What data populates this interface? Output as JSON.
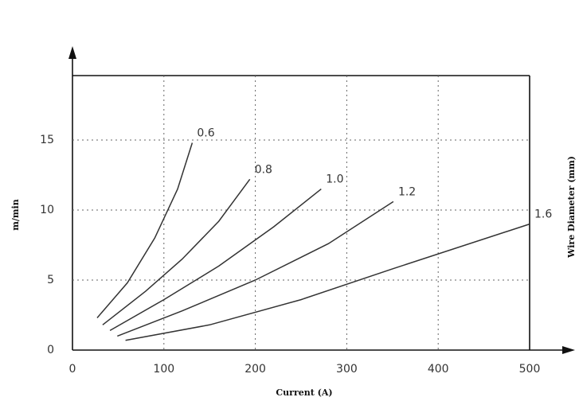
{
  "chart_data": {
    "type": "line",
    "xlabel": "Current (A)",
    "ylabel": "m/min",
    "y2label": "Wire Diameter (mm)",
    "xlim": [
      0,
      500
    ],
    "ylim": [
      0,
      19.6
    ],
    "xticks": [
      0,
      100,
      200,
      300,
      400,
      500
    ],
    "yticks": [
      0,
      5,
      10,
      15
    ],
    "grid": true,
    "series": [
      {
        "name": "0.6",
        "color": "#333333",
        "x": [
          27,
          60,
          90,
          115,
          131
        ],
        "values": [
          2.3,
          4.8,
          8,
          11.5,
          14.8
        ]
      },
      {
        "name": "0.8",
        "color": "#333333",
        "x": [
          33,
          80,
          120,
          160,
          194
        ],
        "values": [
          1.8,
          4.2,
          6.5,
          9.2,
          12.2
        ]
      },
      {
        "name": "1.0",
        "color": "#333333",
        "x": [
          41,
          100,
          160,
          220,
          272
        ],
        "values": [
          1.4,
          3.6,
          6,
          8.8,
          11.5
        ]
      },
      {
        "name": "1.2",
        "color": "#333333",
        "x": [
          49,
          120,
          200,
          280,
          351
        ],
        "values": [
          1.0,
          2.8,
          5,
          7.6,
          10.6
        ]
      },
      {
        "name": "1.6",
        "color": "#333333",
        "x": [
          58,
          150,
          250,
          350,
          500
        ],
        "values": [
          0.7,
          1.8,
          3.6,
          5.8,
          9
        ]
      }
    ]
  }
}
